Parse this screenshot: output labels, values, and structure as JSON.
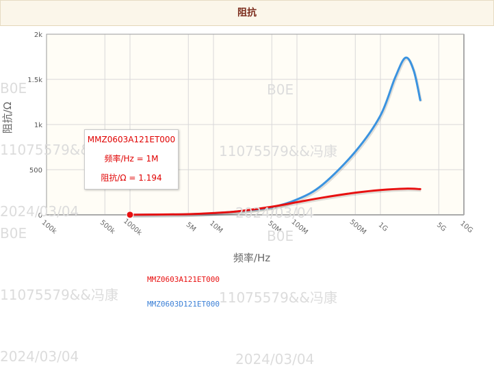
{
  "header": {
    "title": "阻抗"
  },
  "chart_data": {
    "type": "line",
    "xlabel": "频率/Hz",
    "ylabel": "阻抗/Ω",
    "x_scale": "log",
    "ylim": [
      0,
      2000
    ],
    "x_ticks": [
      {
        "v": 100000,
        "label": "100k"
      },
      {
        "v": 500000,
        "label": "500k"
      },
      {
        "v": 1000000,
        "label": "1000k"
      },
      {
        "v": 5000000,
        "label": "5M"
      },
      {
        "v": 10000000,
        "label": "10M"
      },
      {
        "v": 50000000,
        "label": "50M"
      },
      {
        "v": 100000000,
        "label": "100M"
      },
      {
        "v": 500000000,
        "label": "500M"
      },
      {
        "v": 1000000000,
        "label": "1G"
      },
      {
        "v": 5000000000,
        "label": "5G"
      },
      {
        "v": 10000000000,
        "label": "10G"
      }
    ],
    "y_ticks": [
      {
        "v": 0,
        "label": "0"
      },
      {
        "v": 500,
        "label": "500"
      },
      {
        "v": 1000,
        "label": "1k"
      },
      {
        "v": 1500,
        "label": "1.5k"
      },
      {
        "v": 2000,
        "label": "2k"
      }
    ],
    "grid": true,
    "series": [
      {
        "name": "MMZ0603A121ET000",
        "color": "#e81010",
        "x": [
          1000000,
          2000000,
          5000000,
          10000000,
          20000000,
          50000000,
          100000000,
          200000000,
          500000000,
          1000000000,
          2000000000,
          3000000000
        ],
        "y": [
          1.194,
          3,
          8,
          20,
          40,
          90,
          140,
          190,
          245,
          275,
          290,
          285
        ]
      },
      {
        "name": "MMZ0603D121ET000",
        "color": "#3a93e0",
        "x": [
          1000000,
          2000000,
          5000000,
          10000000,
          20000000,
          50000000,
          100000000,
          200000000,
          500000000,
          1000000000,
          1500000000,
          2000000000,
          2500000000,
          3000000000
        ],
        "y": [
          1.1,
          2.5,
          7,
          18,
          40,
          85,
          170,
          330,
          700,
          1100,
          1520,
          1740,
          1600,
          1270
        ]
      }
    ],
    "tooltip": {
      "name": "MMZ0603A121ET000",
      "freq_line": "频率/Hz = 1M",
      "imp_line": "阻抗/Ω = 1.194"
    }
  },
  "watermark": {
    "code": "B0E",
    "line1": "11075579&&冯康",
    "line2": "2024/03/04"
  }
}
